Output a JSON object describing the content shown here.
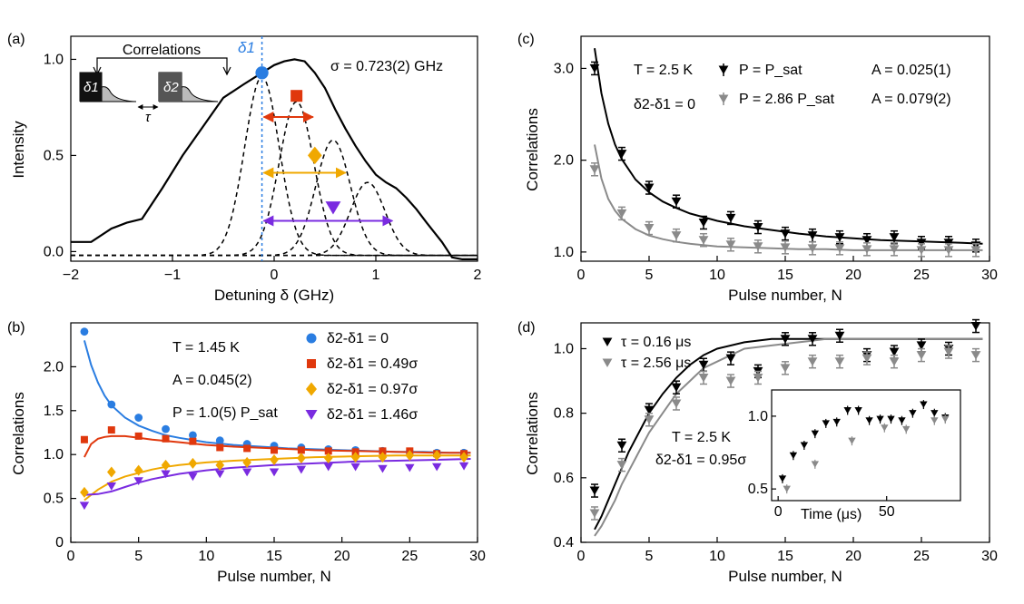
{
  "chart_data": [
    {
      "panel": "(a)",
      "type": "line",
      "xlabel": "Detuning δ (GHz)",
      "ylabel": "Intensity",
      "xlim": [
        -2,
        2
      ],
      "ylim": [
        -0.05,
        1.12
      ],
      "xticks": [
        -2,
        -1,
        0,
        1,
        2
      ],
      "xtick_labels": [
        "−2",
        "−1",
        "0",
        "1",
        "2"
      ],
      "yticks": [
        0.0,
        0.5,
        1.0
      ],
      "ytick_labels": [
        "0.0",
        "0.5",
        "1.0"
      ],
      "sigma_label": "σ = 0.723(2) GHz",
      "inset_title": "Correlations",
      "delta1_label": "δ1",
      "delta2_label": "δ2",
      "tau_label": "τ",
      "spectrum": {
        "x": [
          -2.0,
          -1.8,
          -1.6,
          -1.45,
          -1.3,
          -1.1,
          -0.9,
          -0.7,
          -0.5,
          -0.3,
          -0.15,
          0.0,
          0.1,
          0.2,
          0.3,
          0.4,
          0.5,
          0.6,
          0.7,
          0.8,
          0.9,
          1.0,
          1.1,
          1.2,
          1.3,
          1.4,
          1.5,
          1.65,
          1.75,
          1.85,
          2.0
        ],
        "y": [
          0.05,
          0.05,
          0.12,
          0.15,
          0.17,
          0.33,
          0.5,
          0.65,
          0.8,
          0.87,
          0.92,
          0.97,
          0.99,
          1.0,
          0.99,
          0.93,
          0.85,
          0.74,
          0.64,
          0.55,
          0.47,
          0.4,
          0.36,
          0.33,
          0.28,
          0.22,
          0.15,
          0.05,
          -0.03,
          -0.04,
          -0.04
        ]
      },
      "gaussians": [
        {
          "center": -0.12,
          "amp": 0.93,
          "width": 0.17
        },
        {
          "center": 0.22,
          "amp": 0.8,
          "width": 0.17
        },
        {
          "center": 0.58,
          "amp": 0.6,
          "width": 0.17
        },
        {
          "center": 0.92,
          "amp": 0.38,
          "width": 0.17
        }
      ],
      "delta1_x": -0.12,
      "markers": [
        {
          "x": -0.12,
          "y": 0.93,
          "shape": "circle",
          "color": "#2a7de1"
        },
        {
          "x": 0.22,
          "y": 0.81,
          "shape": "square",
          "color": "#e0380d"
        },
        {
          "x": 0.4,
          "y": 0.5,
          "shape": "diamond",
          "color": "#f0a800"
        },
        {
          "x": 0.58,
          "y": 0.23,
          "shape": "triangle",
          "color": "#7a2be0"
        }
      ],
      "arrows": [
        {
          "x1": -0.12,
          "x2": 0.4,
          "y": 0.7,
          "color": "#e0380d"
        },
        {
          "x1": -0.12,
          "x2": 0.72,
          "y": 0.41,
          "color": "#f0a800"
        },
        {
          "x1": -0.12,
          "x2": 1.18,
          "y": 0.16,
          "color": "#7a2be0"
        }
      ]
    },
    {
      "panel": "(b)",
      "type": "scatter",
      "xlabel": "Pulse number, N",
      "ylabel": "Correlations",
      "xlim": [
        0,
        30
      ],
      "ylim": [
        0,
        2.5
      ],
      "xticks": [
        0,
        5,
        10,
        15,
        20,
        25,
        30
      ],
      "yticks": [
        0,
        0.5,
        1.0,
        1.5,
        2.0
      ],
      "ytick_labels": [
        "0",
        "0.5",
        "1.0",
        "1.5",
        "2.0"
      ],
      "annotations": [
        "T = 1.45 K",
        "A = 0.045(2)",
        "P = 1.0(5) P_sat"
      ],
      "series": [
        {
          "name": "δ2-δ1 = 0",
          "color": "#2a7de1",
          "marker": "circle",
          "x": [
            1,
            3,
            5,
            7,
            9,
            11,
            13,
            15,
            17,
            19,
            21,
            23,
            25,
            27,
            29
          ],
          "y": [
            2.4,
            1.57,
            1.42,
            1.29,
            1.22,
            1.16,
            1.12,
            1.1,
            1.08,
            1.06,
            1.05,
            1.04,
            1.03,
            1.02,
            1.02
          ]
        },
        {
          "name": "δ2-δ1 = 0.49σ",
          "color": "#e0380d",
          "marker": "square",
          "x": [
            1,
            3,
            5,
            7,
            9,
            11,
            13,
            15,
            17,
            19,
            21,
            23,
            25,
            27,
            29
          ],
          "y": [
            1.17,
            1.28,
            1.21,
            1.18,
            1.15,
            1.08,
            1.07,
            1.05,
            1.05,
            1.04,
            1.03,
            1.04,
            1.04,
            1.01,
            1.01
          ]
        },
        {
          "name": "δ2-δ1 = 0.97σ",
          "color": "#f0a800",
          "marker": "diamond",
          "x": [
            1,
            3,
            5,
            7,
            9,
            11,
            13,
            15,
            17,
            19,
            21,
            23,
            25,
            27,
            29
          ],
          "y": [
            0.57,
            0.8,
            0.82,
            0.88,
            0.9,
            0.88,
            0.91,
            0.94,
            0.96,
            0.96,
            0.97,
            0.97,
            0.99,
            0.99,
            0.97
          ]
        },
        {
          "name": "δ2-δ1 = 1.46σ",
          "color": "#7a2be0",
          "marker": "triangle",
          "x": [
            1,
            3,
            5,
            7,
            9,
            11,
            13,
            15,
            17,
            19,
            21,
            23,
            25,
            27,
            29
          ],
          "y": [
            0.42,
            0.64,
            0.7,
            0.78,
            0.75,
            0.78,
            0.8,
            0.8,
            0.83,
            0.86,
            0.86,
            0.84,
            0.85,
            0.86,
            0.87
          ]
        }
      ],
      "fits": [
        {
          "color": "#2a7de1",
          "x": [
            1.0,
            1.5,
            2,
            2.5,
            3,
            4,
            5,
            6,
            7,
            8,
            10,
            12,
            14,
            16,
            18,
            20,
            22,
            24,
            26,
            28,
            29.5
          ],
          "y": [
            2.3,
            2.02,
            1.82,
            1.67,
            1.56,
            1.42,
            1.33,
            1.27,
            1.22,
            1.19,
            1.14,
            1.11,
            1.09,
            1.07,
            1.06,
            1.05,
            1.04,
            1.03,
            1.03,
            1.02,
            1.02
          ]
        },
        {
          "color": "#e0380d",
          "x": [
            1.0,
            1.5,
            2,
            2.5,
            3,
            3.5,
            4,
            5,
            6,
            8,
            10,
            12,
            15,
            18,
            21,
            24,
            27,
            29.5
          ],
          "y": [
            0.97,
            1.12,
            1.18,
            1.2,
            1.21,
            1.21,
            1.21,
            1.19,
            1.17,
            1.14,
            1.11,
            1.09,
            1.07,
            1.05,
            1.04,
            1.03,
            1.02,
            1.02
          ]
        },
        {
          "color": "#f0a800",
          "x": [
            1.0,
            2,
            3,
            4,
            5,
            6,
            7,
            8,
            10,
            12,
            15,
            18,
            21,
            24,
            27,
            29.5
          ],
          "y": [
            0.48,
            0.6,
            0.69,
            0.75,
            0.79,
            0.83,
            0.86,
            0.88,
            0.91,
            0.93,
            0.95,
            0.97,
            0.98,
            0.99,
            0.99,
            0.99
          ]
        },
        {
          "color": "#7a2be0",
          "x": [
            1.0,
            2,
            3,
            4,
            5,
            6,
            7,
            8,
            10,
            12,
            15,
            18,
            21,
            24,
            27,
            29.5
          ],
          "y": [
            0.54,
            0.55,
            0.58,
            0.63,
            0.68,
            0.72,
            0.75,
            0.78,
            0.82,
            0.85,
            0.88,
            0.9,
            0.92,
            0.93,
            0.94,
            0.95
          ]
        }
      ]
    },
    {
      "panel": "(c)",
      "type": "scatter",
      "xlabel": "Pulse number, N",
      "ylabel": "Correlations",
      "xlim": [
        0,
        30
      ],
      "ylim": [
        0.9,
        3.35
      ],
      "xticks": [
        0,
        5,
        10,
        15,
        20,
        25,
        30
      ],
      "yticks": [
        1.0,
        2.0,
        3.0
      ],
      "ytick_labels": [
        "1.0",
        "2.0",
        "3.0"
      ],
      "annotations": [
        "T = 2.5 K",
        "δ2-δ1 = 0"
      ],
      "series": [
        {
          "name": "P = P_sat",
          "A": "A = 0.025(1)",
          "color": "#000000",
          "marker": "triangle-down",
          "x": [
            1,
            3,
            5,
            7,
            9,
            11,
            13,
            15,
            17,
            19,
            21,
            23,
            25,
            27,
            29
          ],
          "y": [
            3.0,
            2.07,
            1.7,
            1.55,
            1.32,
            1.37,
            1.27,
            1.2,
            1.18,
            1.16,
            1.13,
            1.16,
            1.1,
            1.1,
            1.07
          ]
        },
        {
          "name": "P = 2.86 P_sat",
          "A": "A = 0.079(2)",
          "color": "#8a8a8a",
          "marker": "triangle-down",
          "x": [
            1,
            3,
            5,
            7,
            9,
            11,
            13,
            15,
            17,
            19,
            21,
            23,
            25,
            27,
            29
          ],
          "y": [
            1.9,
            1.42,
            1.26,
            1.18,
            1.13,
            1.08,
            1.06,
            1.05,
            1.04,
            1.04,
            1.03,
            1.03,
            1.02,
            1.02,
            1.02
          ]
        }
      ],
      "fits": [
        {
          "color": "#000000",
          "x": [
            1.0,
            1.5,
            2,
            2.5,
            3,
            4,
            5,
            6,
            7,
            8,
            10,
            12,
            14,
            16,
            18,
            20,
            22,
            24,
            26,
            28,
            29.5
          ],
          "y": [
            3.22,
            2.73,
            2.4,
            2.17,
            2.01,
            1.79,
            1.65,
            1.55,
            1.48,
            1.42,
            1.34,
            1.28,
            1.24,
            1.2,
            1.17,
            1.15,
            1.13,
            1.12,
            1.11,
            1.1,
            1.09
          ]
        },
        {
          "color": "#8a8a8a",
          "x": [
            1.0,
            1.5,
            2,
            2.5,
            3,
            4,
            5,
            6,
            7,
            8,
            10,
            12,
            14,
            16,
            18,
            20,
            22,
            24,
            26,
            28,
            29.5
          ],
          "y": [
            2.17,
            1.8,
            1.58,
            1.45,
            1.36,
            1.25,
            1.18,
            1.14,
            1.11,
            1.09,
            1.06,
            1.05,
            1.04,
            1.03,
            1.03,
            1.02,
            1.02,
            1.02,
            1.02,
            1.02,
            1.02
          ]
        }
      ]
    },
    {
      "panel": "(d)",
      "type": "scatter",
      "xlabel": "Pulse number, N",
      "ylabel": "Correlations",
      "xlim": [
        0,
        30
      ],
      "ylim": [
        0.4,
        1.08
      ],
      "xticks": [
        0,
        5,
        10,
        15,
        20,
        25,
        30
      ],
      "yticks": [
        0.4,
        0.6,
        0.8,
        1.0
      ],
      "ytick_labels": [
        "0.4",
        "0.6",
        "0.8",
        "1.0"
      ],
      "annotations": [
        "T = 2.5 K",
        "δ2-δ1 = 0.95σ"
      ],
      "series": [
        {
          "name": "τ = 0.16 μs",
          "color": "#000000",
          "marker": "triangle-down",
          "x": [
            1,
            3,
            5,
            7,
            9,
            11,
            13,
            15,
            17,
            19,
            21,
            23,
            25,
            27,
            29
          ],
          "y": [
            0.56,
            0.7,
            0.81,
            0.88,
            0.95,
            0.97,
            0.93,
            1.03,
            1.03,
            1.04,
            0.98,
            0.99,
            1.01,
            1.0,
            1.07
          ]
        },
        {
          "name": "τ = 2.56 μs",
          "color": "#8a8a8a",
          "marker": "triangle-down",
          "x": [
            1,
            3,
            5,
            7,
            9,
            11,
            13,
            15,
            17,
            19,
            21,
            23,
            25,
            27,
            29
          ],
          "y": [
            0.49,
            0.64,
            0.78,
            0.83,
            0.91,
            0.9,
            0.91,
            0.94,
            0.96,
            0.96,
            0.97,
            0.96,
            0.98,
            0.99,
            0.98
          ]
        }
      ],
      "fits": [
        {
          "color": "#000000",
          "x": [
            1.0,
            1.5,
            2,
            2.5,
            3,
            3.5,
            4,
            4.5,
            5,
            6,
            7,
            8,
            9,
            10,
            12,
            14,
            16,
            18,
            20,
            24,
            29.5
          ],
          "y": [
            0.44,
            0.48,
            0.53,
            0.58,
            0.63,
            0.68,
            0.72,
            0.76,
            0.8,
            0.86,
            0.91,
            0.95,
            0.98,
            1.0,
            1.02,
            1.03,
            1.03,
            1.03,
            1.03,
            1.03,
            1.03
          ]
        },
        {
          "color": "#8a8a8a",
          "x": [
            1.0,
            1.5,
            2,
            2.5,
            3,
            3.5,
            4,
            4.5,
            5,
            6,
            7,
            8,
            9,
            10,
            12,
            14,
            16,
            18,
            20,
            24,
            29.5
          ],
          "y": [
            0.42,
            0.45,
            0.49,
            0.53,
            0.58,
            0.62,
            0.66,
            0.7,
            0.74,
            0.8,
            0.86,
            0.9,
            0.94,
            0.96,
            1.0,
            1.01,
            1.02,
            1.03,
            1.03,
            1.03,
            1.03
          ]
        }
      ],
      "inset": {
        "xlabel": "Time (μs)",
        "xlim": [
          -3,
          84
        ],
        "ylim": [
          0.42,
          1.18
        ],
        "xticks": [
          0,
          50
        ],
        "yticks": [
          0.5,
          1.0
        ],
        "ytick_labels": [
          "0.5",
          "1.0"
        ],
        "series": [
          {
            "color": "#000000",
            "x": [
              2,
              7,
              12,
              17,
              22,
              27,
              32,
              37,
              42,
              47,
              52,
              57,
              62,
              67,
              72,
              77
            ],
            "y": [
              0.57,
              0.73,
              0.8,
              0.88,
              0.95,
              0.96,
              1.04,
              1.04,
              0.97,
              0.98,
              0.98,
              0.97,
              1.02,
              1.08,
              1.02,
              0.99
            ]
          },
          {
            "color": "#8a8a8a",
            "x": [
              4,
              17,
              34,
              49,
              59,
              72,
              77
            ],
            "y": [
              0.5,
              0.67,
              0.83,
              0.92,
              0.91,
              0.97,
              0.98
            ]
          }
        ]
      }
    }
  ]
}
